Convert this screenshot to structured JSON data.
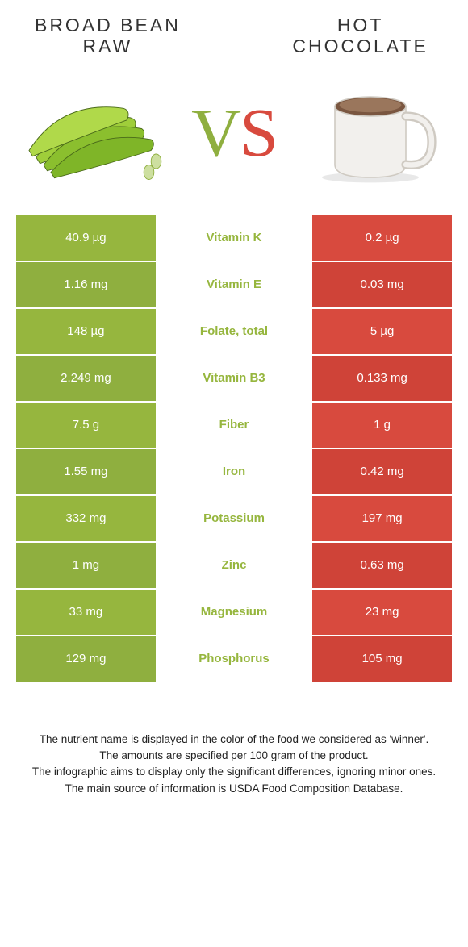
{
  "left_food": {
    "title": "BROAD BEAN RAW",
    "color": "#96b63e",
    "color_alt": "#8faf3f"
  },
  "right_food": {
    "title": "HOT CHOCOLATE",
    "color": "#d84a3e",
    "color_alt": "#cf4338"
  },
  "vs": {
    "v": "V",
    "s": "S"
  },
  "rows": [
    {
      "left": "40.9 µg",
      "mid": "Vitamin K",
      "right": "0.2 µg",
      "winner": "left"
    },
    {
      "left": "1.16 mg",
      "mid": "Vitamin E",
      "right": "0.03 mg",
      "winner": "left"
    },
    {
      "left": "148 µg",
      "mid": "Folate, total",
      "right": "5 µg",
      "winner": "left"
    },
    {
      "left": "2.249 mg",
      "mid": "Vitamin B3",
      "right": "0.133 mg",
      "winner": "left"
    },
    {
      "left": "7.5 g",
      "mid": "Fiber",
      "right": "1 g",
      "winner": "left"
    },
    {
      "left": "1.55 mg",
      "mid": "Iron",
      "right": "0.42 mg",
      "winner": "left"
    },
    {
      "left": "332 mg",
      "mid": "Potassium",
      "right": "197 mg",
      "winner": "left"
    },
    {
      "left": "1 mg",
      "mid": "Zinc",
      "right": "0.63 mg",
      "winner": "left"
    },
    {
      "left": "33 mg",
      "mid": "Magnesium",
      "right": "23 mg",
      "winner": "left"
    },
    {
      "left": "129 mg",
      "mid": "Phosphorus",
      "right": "105 mg",
      "winner": "left"
    }
  ],
  "footnotes": [
    "The nutrient name is displayed in the color of the food we considered as 'winner'.",
    "The amounts are specified per 100 gram of the product.",
    "The infographic aims to display only the significant differences, ignoring minor ones.",
    "The main source of information is USDA Food Composition Database."
  ]
}
